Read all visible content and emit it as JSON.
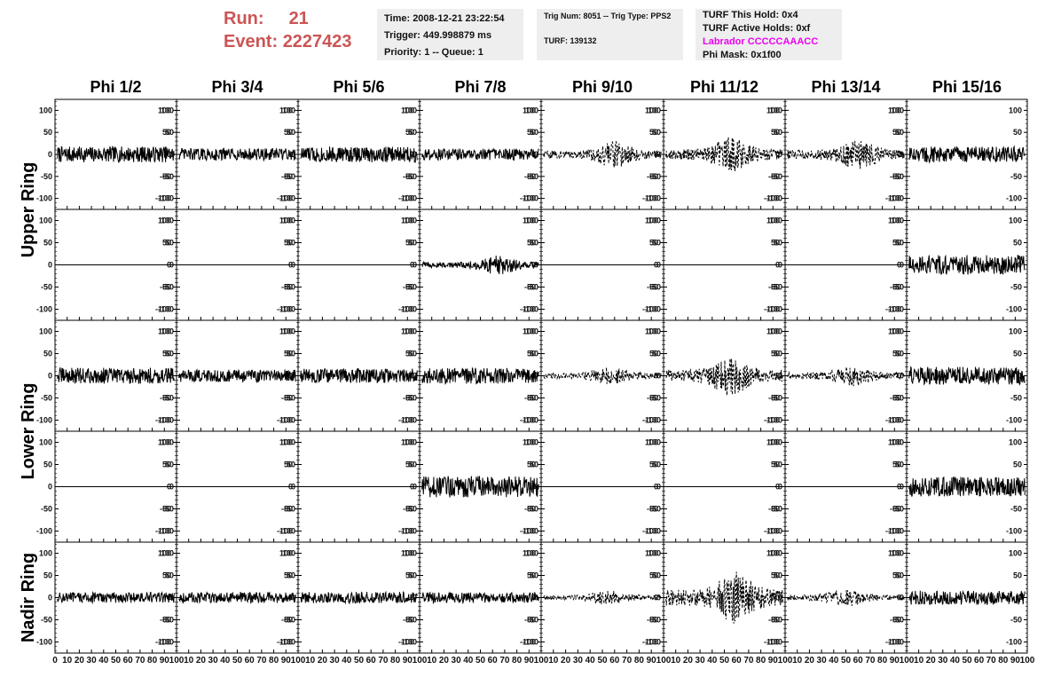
{
  "header": {
    "run_label": "Run:",
    "run_value": "21",
    "event_label": "Event:",
    "event_value": "2227423",
    "time": "Time: 2008-12-21 23:22:54",
    "trigger": "Trigger: 449.998879 ms",
    "priority": "Priority: 1 -- Queue: 1",
    "trig_num": "Trig Num: 8051 -- Trig Type: PPS2",
    "turf": "TURF: 139132",
    "turf_this_hold": "TURF This Hold: 0x4",
    "turf_active_holds": "TURF Active Holds: 0xf",
    "labrador": "Labrador CCCCCAAACC",
    "phi_mask": "Phi Mask: 0x1f00"
  },
  "colors": {
    "run_text": "#cc5555",
    "labrador_text": "#ee00ee",
    "panel_bg": "#eeeeee",
    "trace": "#000000"
  },
  "chart_data": {
    "type": "line",
    "columns": [
      "Phi 1/2",
      "Phi 3/4",
      "Phi 5/6",
      "Phi 7/8",
      "Phi 9/10",
      "Phi 11/12",
      "Phi 13/14",
      "Phi 15/16"
    ],
    "rows": [
      "Upper Ring",
      "",
      "Lower Ring",
      "",
      "Nadir Ring"
    ],
    "row_labels": [
      {
        "text": "Upper Ring",
        "rows": [
          0,
          1
        ]
      },
      {
        "text": "Lower Ring",
        "rows": [
          2,
          3
        ]
      },
      {
        "text": "Nadir Ring",
        "rows": [
          4
        ]
      }
    ],
    "ylim": [
      -125,
      125
    ],
    "yticks": [
      100,
      50,
      0,
      -50,
      -100
    ],
    "xlim": [
      0,
      100
    ],
    "xticks": [
      0,
      10,
      20,
      30,
      40,
      50,
      60,
      70,
      80,
      90,
      100
    ],
    "grid": false,
    "panels": [
      {
        "row": 0,
        "col": 0,
        "amplitude": 18,
        "style": "solid",
        "flat": false
      },
      {
        "row": 0,
        "col": 1,
        "amplitude": 14,
        "style": "solid",
        "flat": false
      },
      {
        "row": 0,
        "col": 2,
        "amplitude": 18,
        "style": "solid",
        "flat": false
      },
      {
        "row": 0,
        "col": 3,
        "amplitude": 13,
        "style": "solid",
        "flat": false
      },
      {
        "row": 0,
        "col": 4,
        "amplitude": 30,
        "style": "dashed",
        "flat": false,
        "burst_center": 60
      },
      {
        "row": 0,
        "col": 5,
        "amplitude": 40,
        "style": "dashed",
        "flat": false,
        "burst_center": 55
      },
      {
        "row": 0,
        "col": 6,
        "amplitude": 35,
        "style": "dashed",
        "flat": false,
        "burst_center": 60
      },
      {
        "row": 0,
        "col": 7,
        "amplitude": 18,
        "style": "solid",
        "flat": false
      },
      {
        "row": 1,
        "col": 0,
        "amplitude": 0,
        "style": "solid",
        "flat": true
      },
      {
        "row": 1,
        "col": 1,
        "amplitude": 0,
        "style": "solid",
        "flat": true
      },
      {
        "row": 1,
        "col": 2,
        "amplitude": 0,
        "style": "solid",
        "flat": true
      },
      {
        "row": 1,
        "col": 3,
        "amplitude": 22,
        "style": "solid",
        "flat": false,
        "burst_center": 65
      },
      {
        "row": 1,
        "col": 4,
        "amplitude": 0,
        "style": "solid",
        "flat": true
      },
      {
        "row": 1,
        "col": 5,
        "amplitude": 0,
        "style": "solid",
        "flat": true
      },
      {
        "row": 1,
        "col": 6,
        "amplitude": 0,
        "style": "solid",
        "flat": true
      },
      {
        "row": 1,
        "col": 7,
        "amplitude": 22,
        "style": "solid",
        "flat": false
      },
      {
        "row": 2,
        "col": 0,
        "amplitude": 18,
        "style": "solid",
        "flat": false
      },
      {
        "row": 2,
        "col": 1,
        "amplitude": 14,
        "style": "solid",
        "flat": false
      },
      {
        "row": 2,
        "col": 2,
        "amplitude": 16,
        "style": "solid",
        "flat": false
      },
      {
        "row": 2,
        "col": 3,
        "amplitude": 18,
        "style": "solid",
        "flat": false
      },
      {
        "row": 2,
        "col": 4,
        "amplitude": 20,
        "style": "dashed",
        "flat": false,
        "burst_center": 55
      },
      {
        "row": 2,
        "col": 5,
        "amplitude": 45,
        "style": "dashed",
        "flat": false,
        "burst_center": 55
      },
      {
        "row": 2,
        "col": 6,
        "amplitude": 25,
        "style": "dashed",
        "flat": false,
        "burst_center": 55
      },
      {
        "row": 2,
        "col": 7,
        "amplitude": 20,
        "style": "solid",
        "flat": false
      },
      {
        "row": 3,
        "col": 0,
        "amplitude": 0,
        "style": "solid",
        "flat": true
      },
      {
        "row": 3,
        "col": 1,
        "amplitude": 0,
        "style": "solid",
        "flat": true
      },
      {
        "row": 3,
        "col": 2,
        "amplitude": 0,
        "style": "solid",
        "flat": true
      },
      {
        "row": 3,
        "col": 3,
        "amplitude": 24,
        "style": "solid",
        "flat": false
      },
      {
        "row": 3,
        "col": 4,
        "amplitude": 0,
        "style": "solid",
        "flat": true
      },
      {
        "row": 3,
        "col": 5,
        "amplitude": 0,
        "style": "solid",
        "flat": true
      },
      {
        "row": 3,
        "col": 6,
        "amplitude": 0,
        "style": "solid",
        "flat": true
      },
      {
        "row": 3,
        "col": 7,
        "amplitude": 22,
        "style": "solid",
        "flat": false
      },
      {
        "row": 4,
        "col": 0,
        "amplitude": 12,
        "style": "solid",
        "flat": false
      },
      {
        "row": 4,
        "col": 1,
        "amplitude": 12,
        "style": "solid",
        "flat": false
      },
      {
        "row": 4,
        "col": 2,
        "amplitude": 13,
        "style": "solid",
        "flat": false
      },
      {
        "row": 4,
        "col": 3,
        "amplitude": 12,
        "style": "solid",
        "flat": false
      },
      {
        "row": 4,
        "col": 4,
        "amplitude": 16,
        "style": "dashed",
        "flat": false,
        "burst_center": 55
      },
      {
        "row": 4,
        "col": 5,
        "amplitude": 60,
        "style": "dashed",
        "flat": false,
        "burst_center": 60
      },
      {
        "row": 4,
        "col": 6,
        "amplitude": 20,
        "style": "dashed",
        "flat": false,
        "burst_center": 50
      },
      {
        "row": 4,
        "col": 7,
        "amplitude": 16,
        "style": "solid",
        "flat": false
      }
    ]
  }
}
